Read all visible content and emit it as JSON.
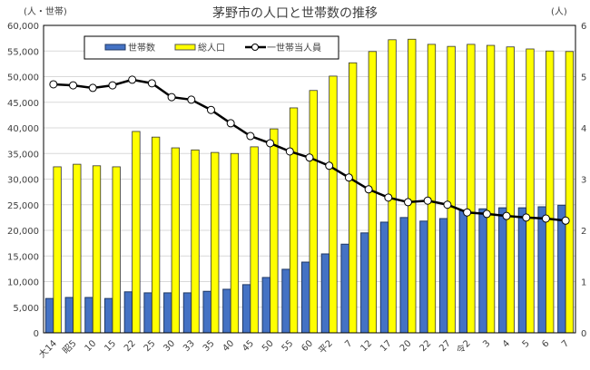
{
  "chart_data": {
    "type": "bar",
    "title": "茅野市の人口と世帯数の推移",
    "ylabel_left": "(人・世帯)",
    "ylabel_right": "(人)",
    "ylim_left": [
      0,
      60000
    ],
    "ylim_right": [
      0,
      6
    ],
    "yticks_left": [
      "0",
      "5,000",
      "10,000",
      "15,000",
      "20,000",
      "25,000",
      "30,000",
      "35,000",
      "40,000",
      "45,000",
      "50,000",
      "55,000",
      "60,000"
    ],
    "yticks_right": [
      "0",
      "1",
      "2",
      "3",
      "4",
      "5",
      "6"
    ],
    "grid": true,
    "legend_position": "top",
    "categories": [
      "大14",
      "昭5",
      "10",
      "15",
      "22",
      "25",
      "30",
      "33",
      "35",
      "40",
      "45",
      "50",
      "55",
      "60",
      "平2",
      "7",
      "12",
      "17",
      "20",
      "22",
      "27",
      "令2",
      "3",
      "4",
      "5",
      "6",
      "7"
    ],
    "series": [
      {
        "name": "世帯数",
        "type": "bar",
        "axis": "left",
        "color": "#4472C4",
        "values": [
          6700,
          6900,
          6900,
          6700,
          8000,
          7800,
          7800,
          7800,
          8100,
          8500,
          9400,
          10800,
          12400,
          13800,
          15400,
          17300,
          19500,
          21600,
          22500,
          21800,
          22300,
          23900,
          24200,
          24400,
          24400,
          24600,
          24900
        ]
      },
      {
        "name": "総人口",
        "type": "bar",
        "axis": "left",
        "color": "#FFFF00",
        "values": [
          32400,
          32900,
          32600,
          32400,
          39300,
          38200,
          36100,
          35700,
          35200,
          35000,
          36300,
          39800,
          43900,
          47300,
          50100,
          52700,
          54900,
          57200,
          57300,
          56300,
          55900,
          56300,
          56100,
          55800,
          55400,
          55000,
          54900
        ]
      },
      {
        "name": "一世帯当人員",
        "type": "line",
        "axis": "right",
        "color": "#000000",
        "values": [
          4.85,
          4.83,
          4.78,
          4.83,
          4.94,
          4.87,
          4.6,
          4.55,
          4.35,
          4.09,
          3.84,
          3.7,
          3.54,
          3.42,
          3.26,
          3.03,
          2.8,
          2.64,
          2.55,
          2.58,
          2.5,
          2.35,
          2.32,
          2.28,
          2.25,
          2.23,
          2.19
        ]
      }
    ]
  }
}
